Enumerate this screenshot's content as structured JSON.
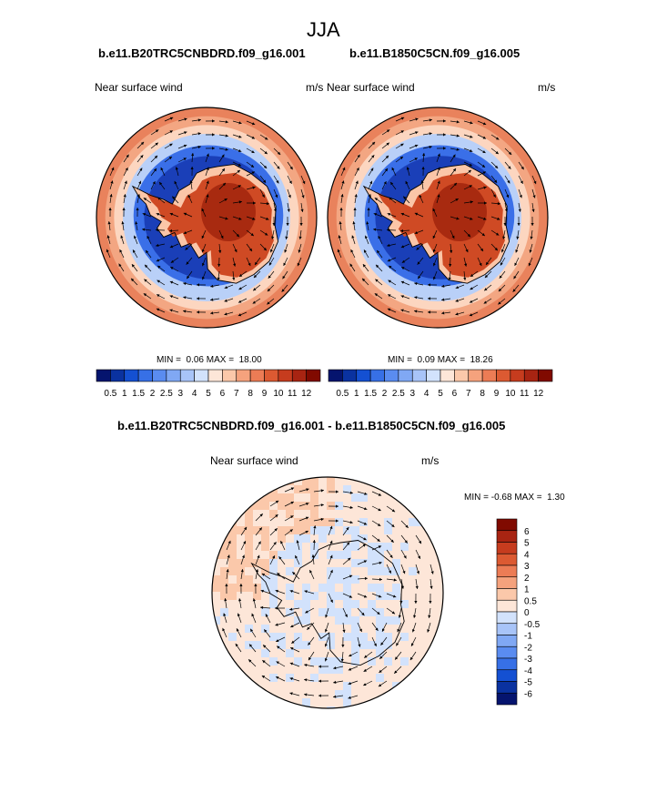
{
  "page": {
    "title": "JJA"
  },
  "panels": [
    {
      "case": "b.e11.B20TRC5CNBDRD.f09_g16.001",
      "variable": "Near surface wind",
      "units": "m/s",
      "min_label": "MIN =",
      "min_value": "0.06",
      "max_label": "MAX =",
      "max_value": "18.00"
    },
    {
      "case": "b.e11.B1850C5CN.f09_g16.005",
      "variable": "Near surface wind",
      "units": "m/s",
      "min_label": "MIN =",
      "min_value": "0.09",
      "max_label": "MAX =",
      "max_value": "18.26"
    }
  ],
  "abs_colorbar": {
    "labels": [
      "0.5",
      "1",
      "1.5",
      "2",
      "2.5",
      "3",
      "4",
      "5",
      "6",
      "7",
      "8",
      "9",
      "10",
      "11",
      "12"
    ],
    "colors": [
      "#05146e",
      "#0a32a0",
      "#1450d2",
      "#3770e6",
      "#5a8cf0",
      "#80a8f4",
      "#a8c4f8",
      "#d2e2fc",
      "#fde6d8",
      "#fbc8aa",
      "#f5a27d",
      "#ec7c55",
      "#dc5a32",
      "#c63c1e",
      "#a82412",
      "#800a00"
    ]
  },
  "difference": {
    "title": "b.e11.B20TRC5CNBDRD.f09_g16.001 - b.e11.B1850C5CN.f09_g16.005",
    "variable": "Near surface wind",
    "units": "m/s",
    "min_label": "MIN =",
    "min_value": "-0.68",
    "max_label": "MAX =",
    "max_value": "1.30"
  },
  "diff_colorbar": {
    "labels": [
      "6",
      "5",
      "4",
      "3",
      "2",
      "1",
      "0.5",
      "0",
      "-0.5",
      "-1",
      "-2",
      "-3",
      "-4",
      "-5",
      "-6"
    ],
    "colors": [
      "#800a00",
      "#a82412",
      "#c63c1e",
      "#dc5a32",
      "#ec7c55",
      "#f5a27d",
      "#fbc8aa",
      "#fde6d8",
      "#d2e2fc",
      "#a8c4f8",
      "#80a8f4",
      "#5a8cf0",
      "#3770e6",
      "#1450d2",
      "#0a32a0",
      "#05146e"
    ]
  }
}
